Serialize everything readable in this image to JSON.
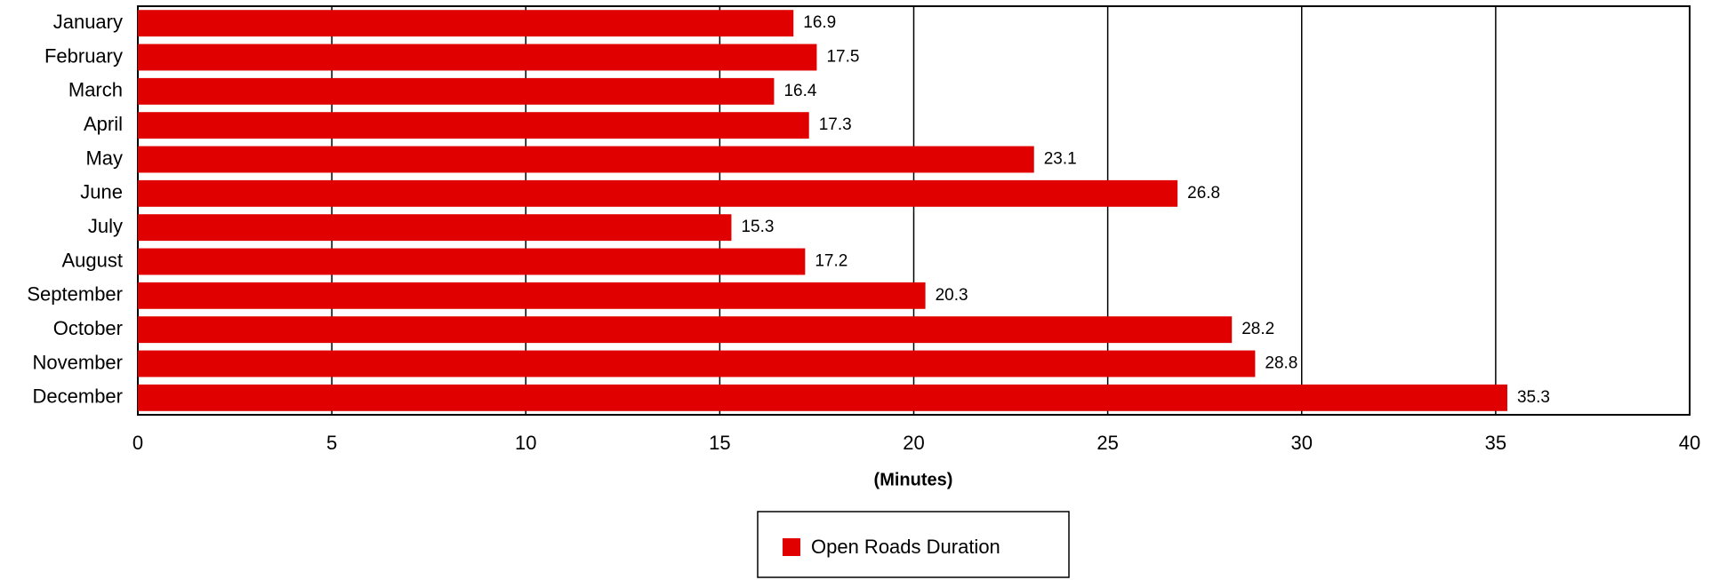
{
  "chart_data": {
    "type": "bar",
    "orientation": "horizontal",
    "categories": [
      "January",
      "February",
      "March",
      "April",
      "May",
      "June",
      "July",
      "August",
      "September",
      "October",
      "November",
      "December"
    ],
    "series": [
      {
        "name": "Open Roads Duration",
        "color": "#e00000",
        "values": [
          16.9,
          17.5,
          16.4,
          17.3,
          23.1,
          26.8,
          15.3,
          17.2,
          20.3,
          28.2,
          28.8,
          35.3
        ]
      }
    ],
    "xlabel": "(Minutes)",
    "xlim": [
      0,
      40
    ],
    "xticks": [
      0,
      5,
      10,
      15,
      20,
      25,
      30,
      35,
      40
    ],
    "grid": true,
    "legend": "bottom"
  }
}
